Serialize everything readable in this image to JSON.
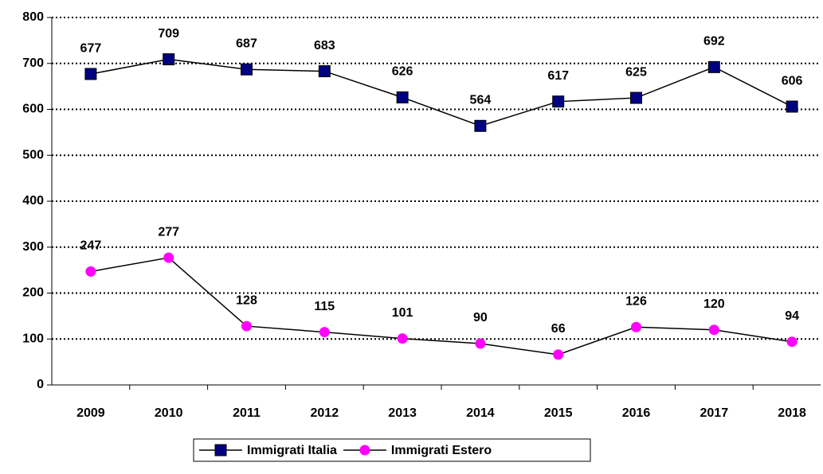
{
  "chart_data": {
    "type": "line",
    "categories": [
      "2009",
      "2010",
      "2011",
      "2012",
      "2013",
      "2014",
      "2015",
      "2016",
      "2017",
      "2018"
    ],
    "series": [
      {
        "name": "Immigrati Italia",
        "color": "#000080",
        "marker": "square",
        "values": [
          677,
          709,
          687,
          683,
          626,
          564,
          617,
          625,
          692,
          606
        ]
      },
      {
        "name": "Immigrati Estero",
        "color": "#ff00ff",
        "marker": "circle",
        "values": [
          247,
          277,
          128,
          115,
          101,
          90,
          66,
          126,
          120,
          94
        ]
      }
    ],
    "ylim": [
      0,
      800
    ],
    "yticks": [
      0,
      100,
      200,
      300,
      400,
      500,
      600,
      700,
      800
    ],
    "grid": true,
    "legend": "bottom"
  }
}
